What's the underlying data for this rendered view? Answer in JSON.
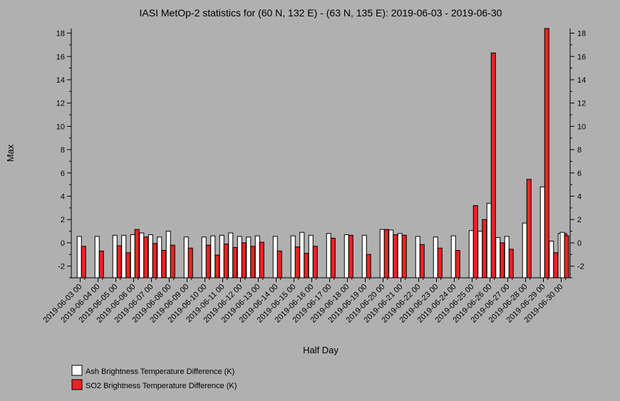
{
  "chart_data": {
    "type": "bar",
    "title": "IASI MetOp-2 statistics for (60 N, 132 E) - (63 N, 135 E): 2019-06-03 - 2019-06-30",
    "xlabel": "Half Day",
    "ylabel": "Max",
    "ylim": [
      -3,
      18.4
    ],
    "yticks": [
      -2,
      0,
      2,
      4,
      6,
      8,
      10,
      12,
      14,
      16,
      18
    ],
    "grid": false,
    "legend_position": "bottom-left",
    "x_tick_labels": [
      "2019-06-03 00",
      "2019-06-04 00",
      "2019-06-05 00",
      "2019-06-06 00",
      "2019-06-07 00",
      "2019-06-08 00",
      "2019-06-09 00",
      "2019-06-10 00",
      "2019-06-11 00",
      "2019-06-12 00",
      "2019-06-13 00",
      "2019-06-14 00",
      "2019-06-15 00",
      "2019-06-16 00",
      "2019-06-17 00",
      "2019-06-18 00",
      "2019-06-19 00",
      "2019-06-20 00",
      "2019-06-21 00",
      "2019-06-22 00",
      "2019-06-23 00",
      "2019-06-24 00",
      "2019-06-25 00",
      "2019-06-26 00",
      "2019-06-27 00",
      "2019-06-28 00",
      "2019-06-29 00",
      "2019-06-30 00"
    ],
    "categories": [
      "2019-06-03 00",
      "2019-06-03 12",
      "2019-06-04 00",
      "2019-06-04 12",
      "2019-06-05 00",
      "2019-06-05 12",
      "2019-06-06 00",
      "2019-06-06 12",
      "2019-06-07 00",
      "2019-06-07 12",
      "2019-06-08 00",
      "2019-06-08 12",
      "2019-06-09 00",
      "2019-06-09 12",
      "2019-06-10 00",
      "2019-06-10 12",
      "2019-06-11 00",
      "2019-06-11 12",
      "2019-06-12 00",
      "2019-06-12 12",
      "2019-06-13 00",
      "2019-06-13 12",
      "2019-06-14 00",
      "2019-06-14 12",
      "2019-06-15 00",
      "2019-06-15 12",
      "2019-06-16 00",
      "2019-06-16 12",
      "2019-06-17 00",
      "2019-06-17 12",
      "2019-06-18 00",
      "2019-06-18 12",
      "2019-06-19 00",
      "2019-06-19 12",
      "2019-06-20 00",
      "2019-06-20 12",
      "2019-06-21 00",
      "2019-06-21 12",
      "2019-06-22 00",
      "2019-06-22 12",
      "2019-06-23 00",
      "2019-06-23 12",
      "2019-06-24 00",
      "2019-06-24 12",
      "2019-06-25 00",
      "2019-06-25 12",
      "2019-06-26 00",
      "2019-06-26 12",
      "2019-06-27 00",
      "2019-06-27 12",
      "2019-06-28 00",
      "2019-06-28 12",
      "2019-06-29 00",
      "2019-06-29 12",
      "2019-06-30 00",
      "2019-06-30 12"
    ],
    "series": [
      {
        "name": "Ash Brightness Temperature Difference (K)",
        "color": "#ffffff",
        "values": [
          null,
          0.55,
          null,
          0.55,
          null,
          0.65,
          0.65,
          0.7,
          0.85,
          0.7,
          0.5,
          1.0,
          null,
          0.5,
          null,
          0.5,
          0.6,
          0.65,
          0.85,
          0.55,
          0.5,
          0.6,
          null,
          0.55,
          null,
          0.6,
          0.9,
          0.65,
          null,
          0.8,
          null,
          0.7,
          null,
          0.65,
          null,
          1.15,
          1.1,
          0.8,
          null,
          0.55,
          null,
          0.5,
          null,
          0.6,
          null,
          1.05,
          1.0,
          3.4,
          0.45,
          0.55,
          null,
          1.7,
          null,
          4.8,
          0.15,
          0.8
        ]
      },
      {
        "name": "SO2 Brightness Temperature Difference (K)",
        "color": "#ee2222",
        "values": [
          null,
          -0.3,
          null,
          -0.7,
          null,
          -0.25,
          -0.85,
          1.15,
          0.5,
          -0.05,
          -0.65,
          -0.2,
          null,
          -0.45,
          null,
          -0.2,
          -1.05,
          -0.1,
          -0.4,
          0.0,
          -0.3,
          0.05,
          null,
          -0.7,
          null,
          -0.35,
          -0.9,
          -0.3,
          null,
          0.4,
          null,
          0.65,
          null,
          -1.0,
          null,
          1.15,
          0.7,
          0.65,
          null,
          -0.15,
          null,
          -0.45,
          null,
          -0.65,
          null,
          3.2,
          2.0,
          16.3,
          0.0,
          -0.55,
          null,
          5.45,
          null,
          18.4,
          -0.85,
          0.8
        ]
      }
    ],
    "extra_ash_last": 0.9,
    "extra_so2_last": 0.6
  },
  "legend": {
    "items": [
      {
        "label": "Ash Brightness Temperature Difference (K)",
        "color": "#ffffff"
      },
      {
        "label": "SO2 Brightness Temperature Difference (K)",
        "color": "#ee2222"
      }
    ]
  }
}
